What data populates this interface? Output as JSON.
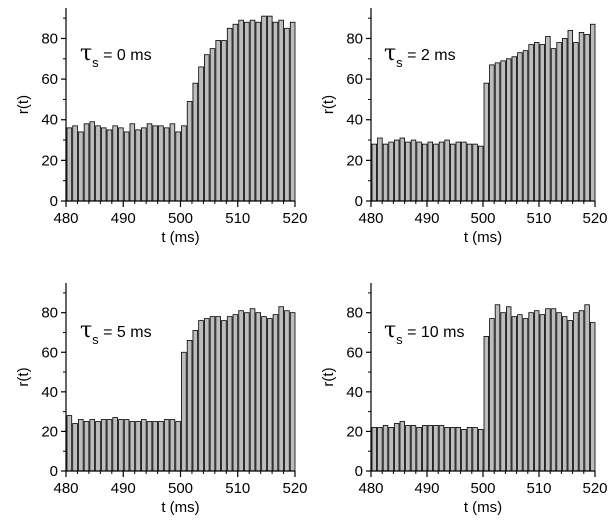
{
  "colors": {
    "bar_fill": "#bdbdbd",
    "bar_stroke": "#000000",
    "axis": "#000000"
  },
  "chart_data": [
    {
      "type": "bar",
      "annotation": {
        "symbol": "τ",
        "subscript": "s",
        "rest": " = 0 ms"
      },
      "xlabel": "t (ms)",
      "ylabel": "r(t)",
      "xlim": [
        480,
        520
      ],
      "ylim": [
        0,
        95
      ],
      "xticks": [
        "480",
        "490",
        "500",
        "510",
        "520"
      ],
      "yticks": [
        "0",
        "20",
        "40",
        "60",
        "80"
      ],
      "bin_width": 1,
      "x": [
        480,
        481,
        482,
        483,
        484,
        485,
        486,
        487,
        488,
        489,
        490,
        491,
        492,
        493,
        494,
        495,
        496,
        497,
        498,
        499,
        500,
        501,
        502,
        503,
        504,
        505,
        506,
        507,
        508,
        509,
        510,
        511,
        512,
        513,
        514,
        515,
        516,
        517,
        518,
        519
      ],
      "values": [
        36,
        37,
        34,
        38,
        39,
        37,
        36,
        35,
        37,
        36,
        34,
        38,
        35,
        36,
        38,
        37,
        37,
        36,
        38,
        34,
        37,
        49,
        58,
        66,
        72,
        75,
        79,
        79,
        85,
        87,
        89,
        88,
        89,
        88,
        91,
        91,
        88,
        89,
        85,
        88
      ]
    },
    {
      "type": "bar",
      "annotation": {
        "symbol": "τ",
        "subscript": "s",
        "rest": " = 2 ms"
      },
      "xlabel": "t (ms)",
      "ylabel": "r(t)",
      "xlim": [
        480,
        520
      ],
      "ylim": [
        0,
        95
      ],
      "xticks": [
        "480",
        "490",
        "500",
        "510",
        "520"
      ],
      "yticks": [
        "0",
        "20",
        "40",
        "60",
        "80"
      ],
      "bin_width": 1,
      "x": [
        480,
        481,
        482,
        483,
        484,
        485,
        486,
        487,
        488,
        489,
        490,
        491,
        492,
        493,
        494,
        495,
        496,
        497,
        498,
        499,
        500,
        501,
        502,
        503,
        504,
        505,
        506,
        507,
        508,
        509,
        510,
        511,
        512,
        513,
        514,
        515,
        516,
        517,
        518,
        519
      ],
      "values": [
        28,
        31,
        28,
        29,
        30,
        31,
        29,
        30,
        29,
        28,
        29,
        28,
        29,
        30,
        28,
        29,
        29,
        28,
        28,
        27,
        58,
        67,
        68,
        69,
        70,
        71,
        73,
        74,
        77,
        78,
        77,
        81,
        75,
        78,
        80,
        84,
        78,
        83,
        82,
        87
      ]
    },
    {
      "type": "bar",
      "annotation": {
        "symbol": "τ",
        "subscript": "s",
        "rest": " = 5 ms"
      },
      "xlabel": "t (ms)",
      "ylabel": "r(t)",
      "xlim": [
        480,
        520
      ],
      "ylim": [
        0,
        95
      ],
      "xticks": [
        "480",
        "490",
        "500",
        "510",
        "520"
      ],
      "yticks": [
        "0",
        "20",
        "40",
        "60",
        "80"
      ],
      "bin_width": 1,
      "x": [
        480,
        481,
        482,
        483,
        484,
        485,
        486,
        487,
        488,
        489,
        490,
        491,
        492,
        493,
        494,
        495,
        496,
        497,
        498,
        499,
        500,
        501,
        502,
        503,
        504,
        505,
        506,
        507,
        508,
        509,
        510,
        511,
        512,
        513,
        514,
        515,
        516,
        517,
        518,
        519
      ],
      "values": [
        28,
        24,
        26,
        25,
        26,
        25,
        26,
        26,
        27,
        26,
        26,
        25,
        25,
        26,
        25,
        25,
        25,
        26,
        26,
        25,
        60,
        66,
        71,
        76,
        77,
        78,
        78,
        76,
        78,
        79,
        81,
        80,
        82,
        80,
        78,
        77,
        79,
        83,
        81,
        80
      ]
    },
    {
      "type": "bar",
      "annotation": {
        "symbol": "τ",
        "subscript": "s",
        "rest": " = 10 ms"
      },
      "xlabel": "t (ms)",
      "ylabel": "r(t)",
      "xlim": [
        480,
        520
      ],
      "ylim": [
        0,
        95
      ],
      "xticks": [
        "480",
        "490",
        "500",
        "510",
        "520"
      ],
      "yticks": [
        "0",
        "20",
        "40",
        "60",
        "80"
      ],
      "bin_width": 1,
      "x": [
        480,
        481,
        482,
        483,
        484,
        485,
        486,
        487,
        488,
        489,
        490,
        491,
        492,
        493,
        494,
        495,
        496,
        497,
        498,
        499,
        500,
        501,
        502,
        503,
        504,
        505,
        506,
        507,
        508,
        509,
        510,
        511,
        512,
        513,
        514,
        515,
        516,
        517,
        518,
        519
      ],
      "values": [
        22,
        22,
        23,
        22,
        24,
        25,
        23,
        23,
        22,
        23,
        23,
        23,
        23,
        22,
        22,
        22,
        21,
        22,
        22,
        21,
        68,
        77,
        84,
        80,
        83,
        78,
        79,
        77,
        80,
        81,
        79,
        82,
        82,
        80,
        78,
        76,
        80,
        81,
        84,
        75
      ]
    }
  ]
}
